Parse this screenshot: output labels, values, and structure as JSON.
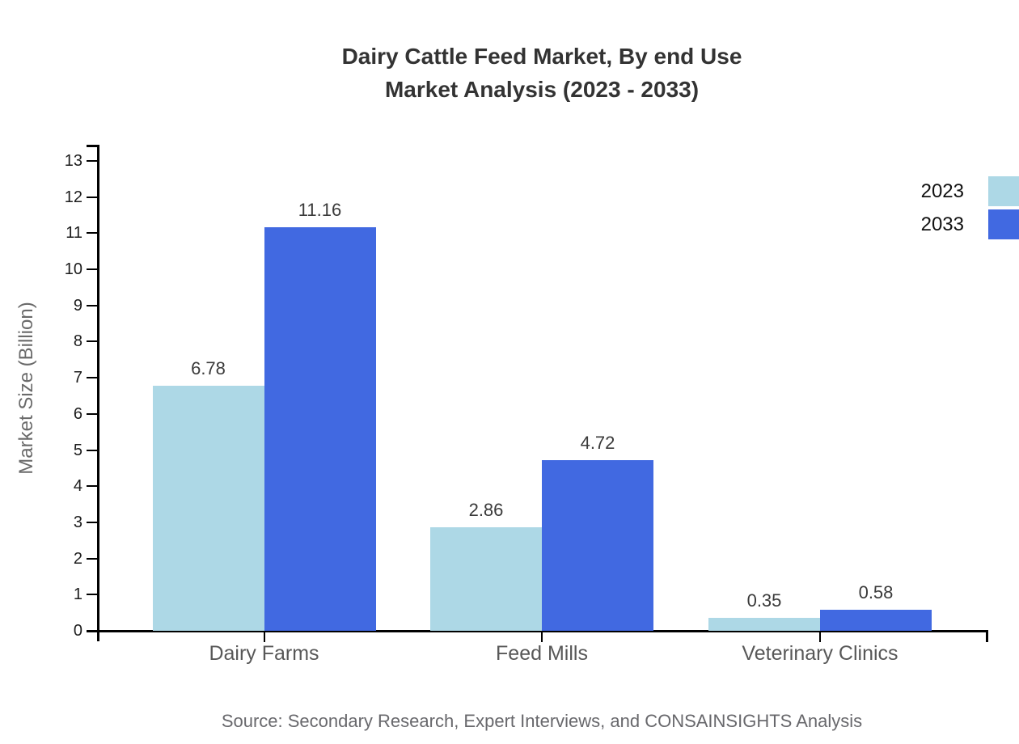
{
  "title": {
    "line1": "Dairy Cattle Feed Market, By end Use",
    "line2": "Market Analysis (2023 - 2033)"
  },
  "chart_data": {
    "type": "bar",
    "title": "Dairy Cattle Feed Market, By end Use Market Analysis (2023 - 2033)",
    "categories": [
      "Dairy Farms",
      "Feed Mills",
      "Veterinary Clinics"
    ],
    "series": [
      {
        "name": "2023",
        "color": "#ADD8E6",
        "values": [
          6.78,
          2.86,
          0.35
        ]
      },
      {
        "name": "2033",
        "color": "#4169E1",
        "values": [
          11.16,
          4.72,
          0.58
        ]
      }
    ],
    "xlabel": "",
    "ylabel": "Market Size (Billion)",
    "ylim": [
      0,
      13
    ],
    "yticks": [
      0,
      1,
      2,
      3,
      4,
      5,
      6,
      7,
      8,
      9,
      10,
      11,
      12,
      13
    ],
    "grid": false,
    "legend_position": "top-right",
    "value_labels": true,
    "value_label_decimals": 2
  },
  "source": "Source: Secondary Research, Expert Interviews, and CONSAINSIGHTS Analysis",
  "colors": {
    "series_2023": "#ADD8E6",
    "series_2033": "#4169E1",
    "axis": "#000000",
    "title_text": "#333333",
    "tick_label_text": "#1c1c1c",
    "category_label_text": "#585858",
    "value_label_text": "#3a3a3a",
    "muted_text": "#68686c"
  }
}
